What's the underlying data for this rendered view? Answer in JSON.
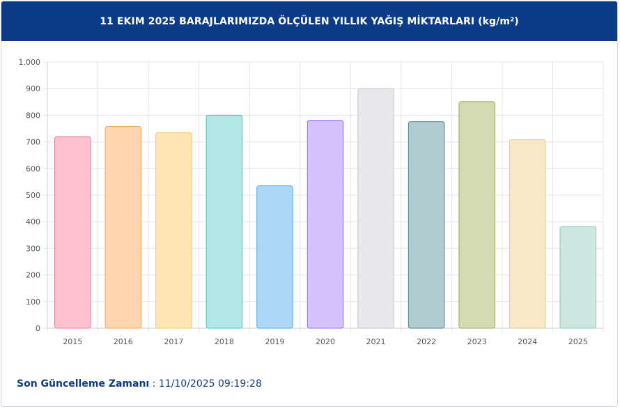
{
  "header": {
    "title": "11 EKIM 2025 BARAJLARIMIZDA ÖLÇÜLEN YILLIK YAĞIŞ MİKTARLARI (kg/m²)"
  },
  "chart_data": {
    "type": "bar",
    "categories": [
      "2015",
      "2016",
      "2017",
      "2018",
      "2019",
      "2020",
      "2021",
      "2022",
      "2023",
      "2024",
      "2025"
    ],
    "values": [
      720,
      758,
      735,
      800,
      535,
      781,
      901,
      776,
      851,
      708,
      382
    ],
    "ylim": [
      0,
      1000
    ],
    "yticks": [
      0,
      100,
      200,
      300,
      400,
      500,
      600,
      700,
      800,
      900,
      1000
    ],
    "ytick_labels": [
      "0",
      "100",
      "200",
      "300",
      "400",
      "500",
      "600",
      "700",
      "800",
      "900",
      "1.000"
    ],
    "grid": true,
    "legend": "none",
    "fill_colors": [
      "#ffc0cf",
      "#ffd6b0",
      "#ffe6b3",
      "#b3e8e6",
      "#acd7f7",
      "#d5c1fb",
      "#e8e8ea",
      "#b0ccd0",
      "#d4dbb2",
      "#f7e8c8",
      "#cbe7df"
    ],
    "border_colors": [
      "#ef7f9e",
      "#f3a95c",
      "#f3c86a",
      "#4dbfb8",
      "#5aa9e6",
      "#9a6ef0",
      "#c7c7cc",
      "#4d7f86",
      "#98a760",
      "#e2c98c",
      "#8cc8b6"
    ]
  },
  "footer": {
    "label": "Son Güncelleme Zamanı",
    "separator": " : ",
    "value": "11/10/2025 09:19:28"
  }
}
